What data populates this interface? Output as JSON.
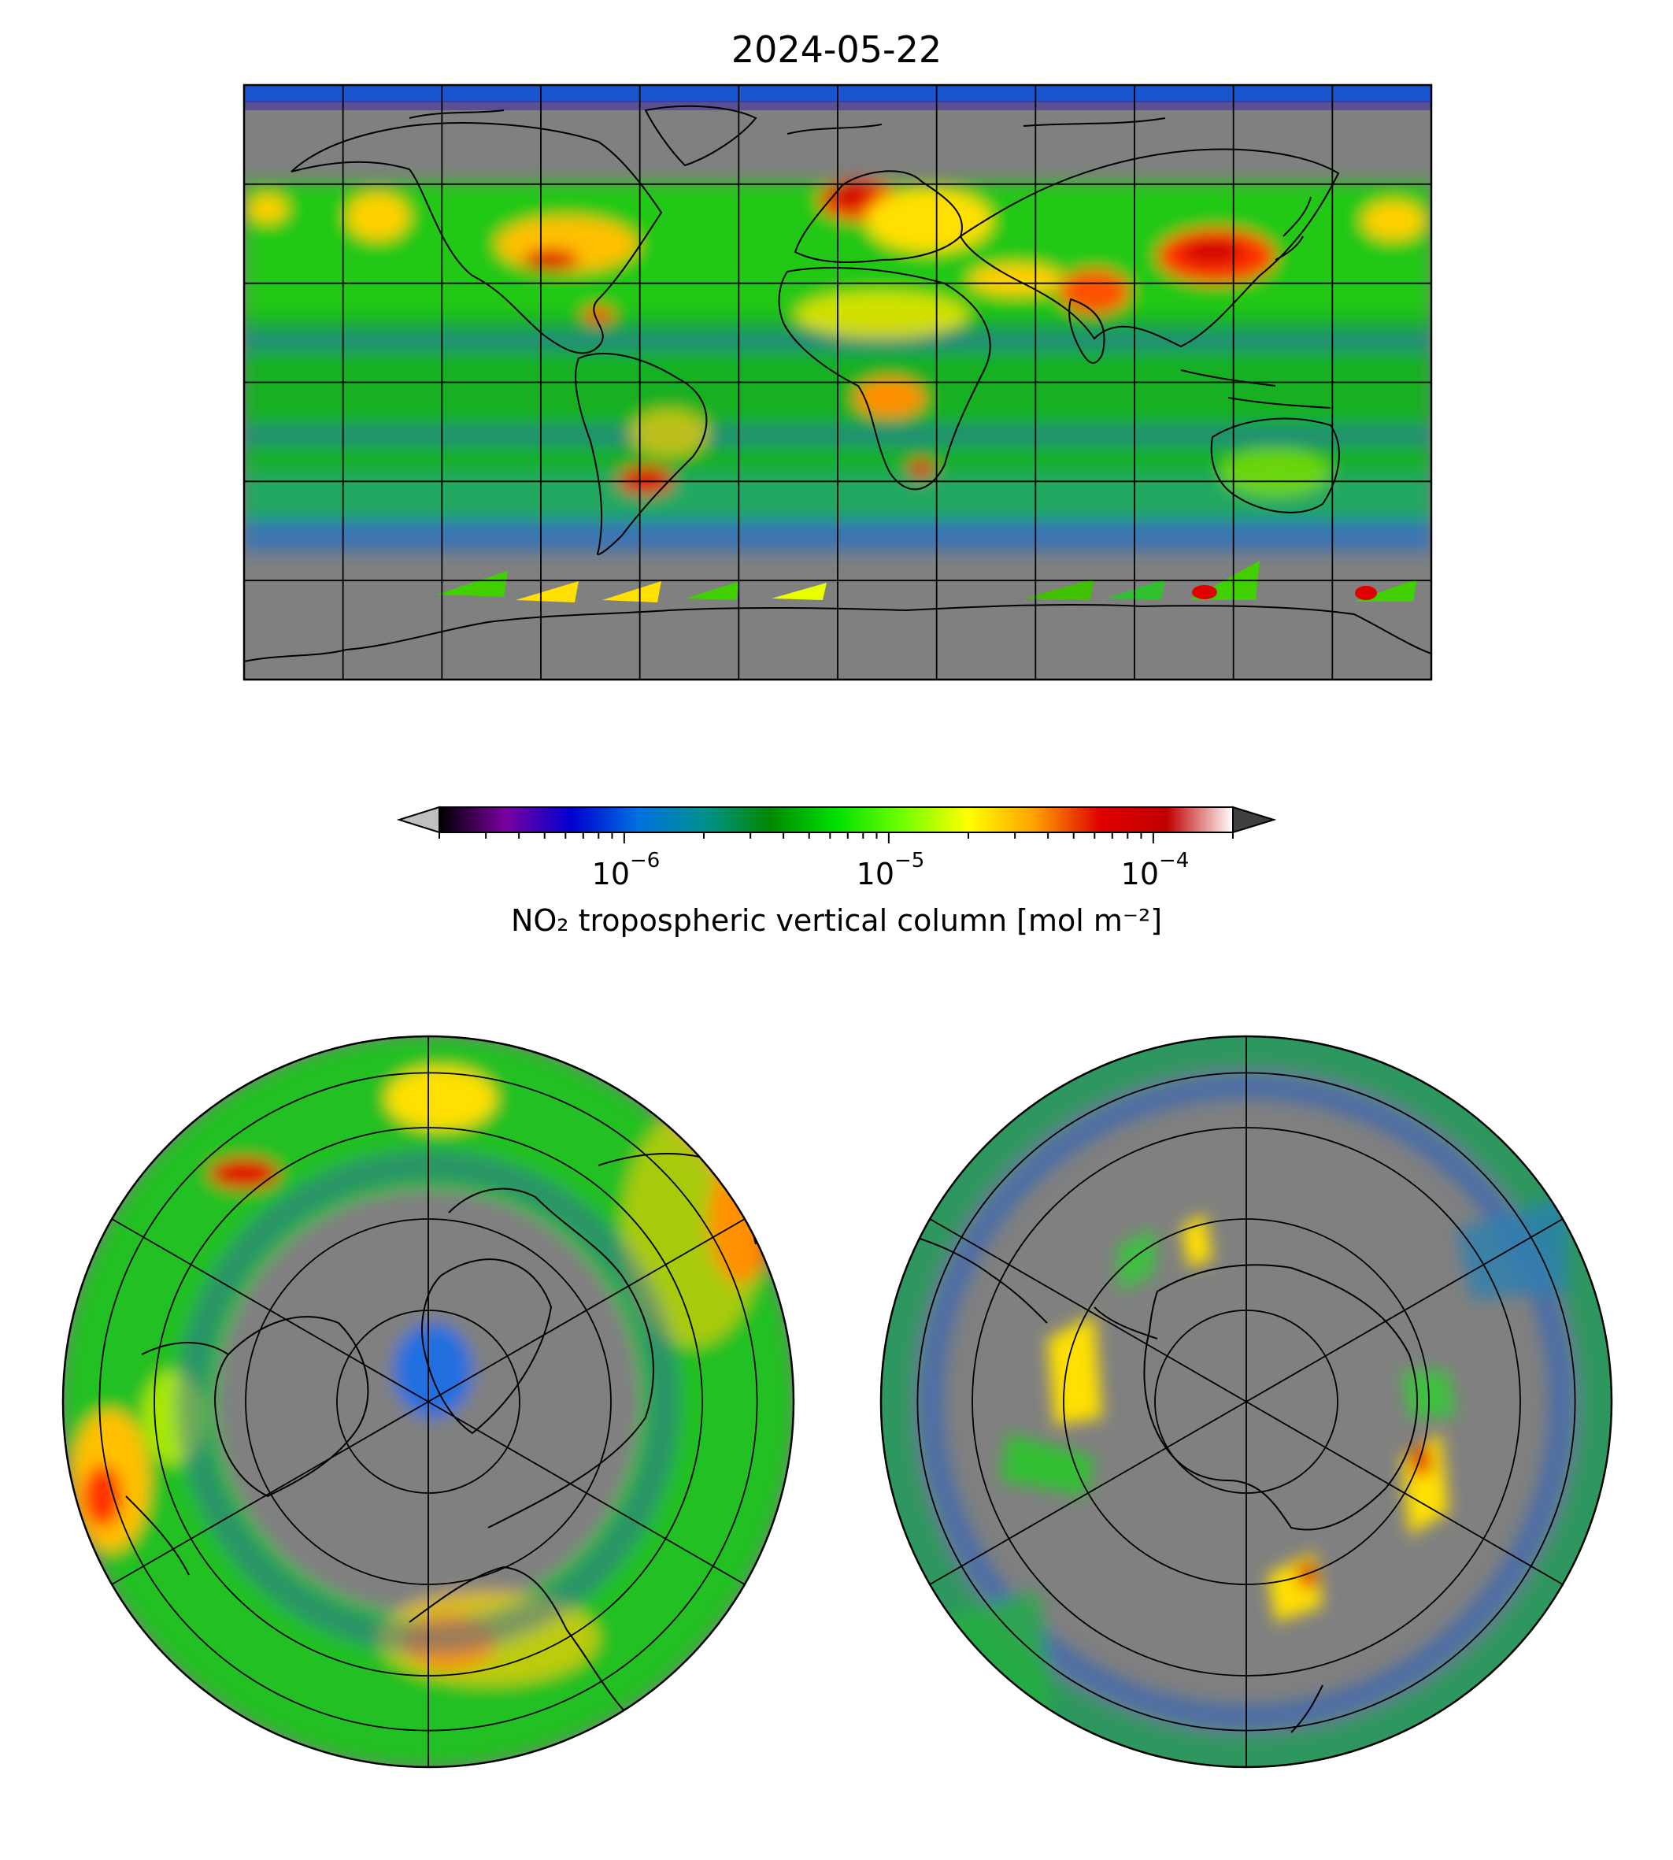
{
  "figure": {
    "title": "2024-05-22"
  },
  "colorbar": {
    "label": "NO₂ tropospheric vertical column [mol m⁻²]",
    "scale": "log",
    "range": [
      2e-07,
      0.0002
    ],
    "extend": "both",
    "under_color": "#c0c0c0",
    "over_color": "#404040",
    "ticks": [
      {
        "base": "10",
        "exponent": "−6",
        "value": 1e-06
      },
      {
        "base": "10",
        "exponent": "−5",
        "value": 1e-05
      },
      {
        "base": "10",
        "exponent": "−4",
        "value": 0.0001
      }
    ],
    "stops": [
      "#000000",
      "#7a00a0",
      "#0000d0",
      "#0070e0",
      "#009090",
      "#008800",
      "#00e000",
      "#70ff00",
      "#ffff00",
      "#ffa000",
      "#e00000",
      "#c00000",
      "#ffffff"
    ]
  },
  "panels": {
    "global_map": {
      "projection": "plate carree",
      "no_data_color": "#808080"
    },
    "north_polar": {
      "projection": "north polar stereographic"
    },
    "south_polar": {
      "projection": "south polar stereographic"
    }
  }
}
